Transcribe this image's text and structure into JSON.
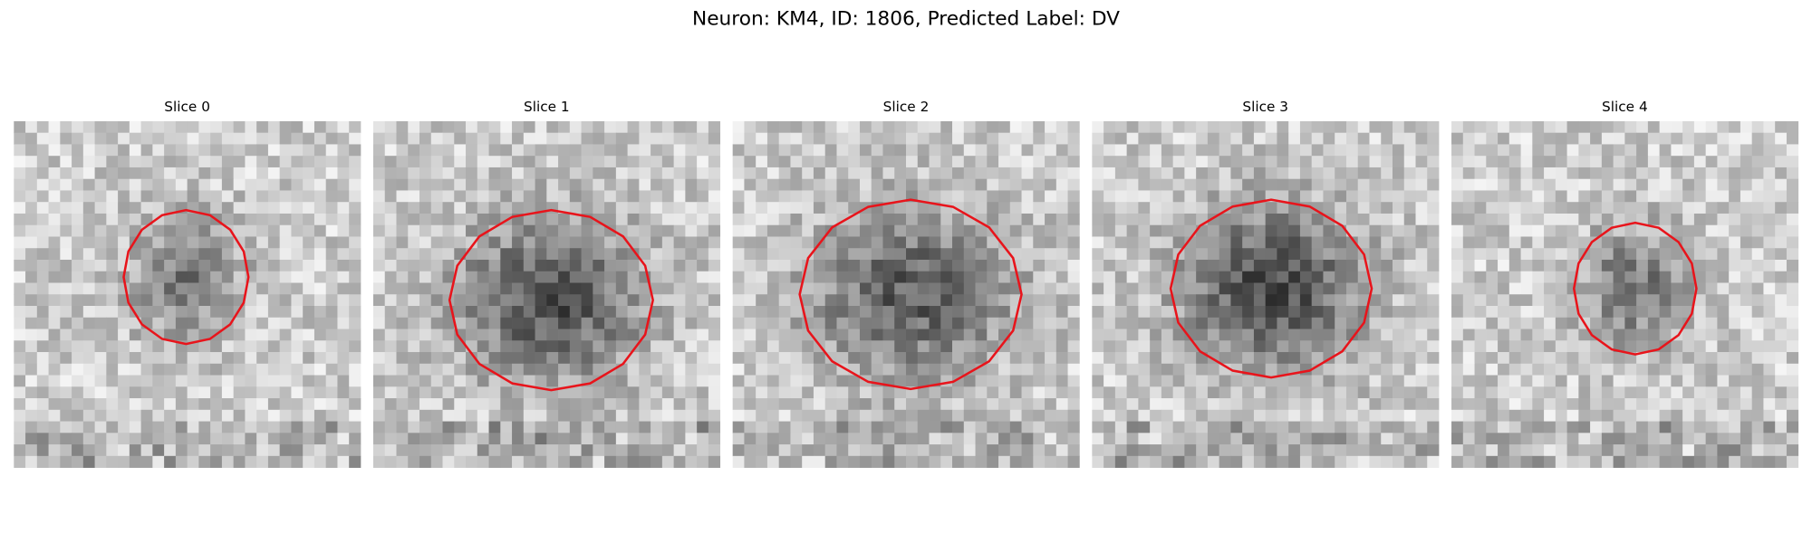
{
  "title": "Neuron: KM4, ID: 1806, Predicted Label: DV",
  "panels": [
    {
      "title": "Slice 0"
    },
    {
      "title": "Slice 1"
    },
    {
      "title": "Slice 2"
    },
    {
      "title": "Slice 3"
    },
    {
      "title": "Slice 4"
    }
  ]
}
